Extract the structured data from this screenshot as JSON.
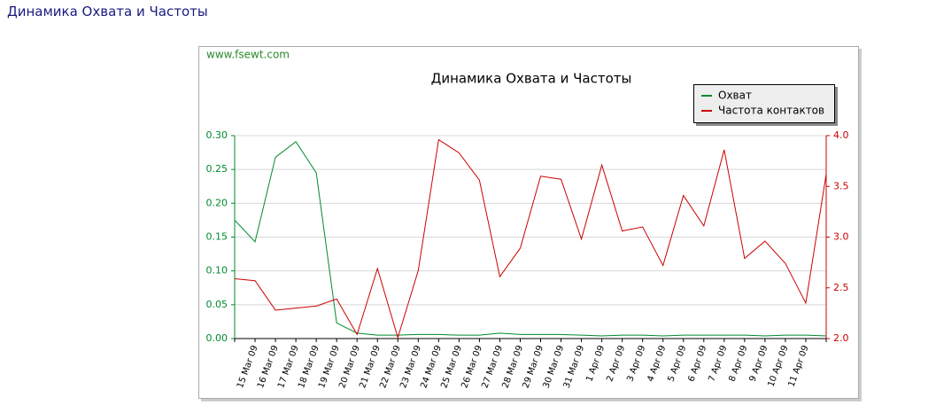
{
  "page_title": "Динамика Охвата и Частоты",
  "chart_data": {
    "type": "line",
    "title": "Динамика Охвата и Частоты",
    "source": "www.fsewt.com",
    "categories": [
      null,
      "15 Mar 09",
      "16 Mar 09",
      "17 Mar 09",
      "18 Mar 09",
      "19 Mar 09",
      "20 Mar 09",
      "21 Mar 09",
      "22 Mar 09",
      "23 Mar 09",
      "24 Mar 09",
      "25 Mar 09",
      "26 Mar 09",
      "27 Mar 09",
      "28 Mar 09",
      "29 Mar 09",
      "30 Mar 09",
      "31 Mar 09",
      "1 Apr 09",
      "2 Apr 09",
      "3 Apr 09",
      "4 Apr 09",
      "5 Apr 09",
      "6 Apr 09",
      "7 Apr 09",
      "8 Apr 09",
      "9 Apr 09",
      "10 Apr 09",
      "11 Apr 09",
      null
    ],
    "series": [
      {
        "name": "Охват",
        "color": "#008a2e",
        "values": [
          0.175,
          0.143,
          0.268,
          0.291,
          0.245,
          0.023,
          0.008,
          0.005,
          0.005,
          0.006,
          0.006,
          0.005,
          0.005,
          0.008,
          0.006,
          0.006,
          0.006,
          0.005,
          0.004,
          0.005,
          0.005,
          0.004,
          0.005,
          0.005,
          0.005,
          0.005,
          0.004,
          0.005,
          0.005,
          0.004
        ]
      },
      {
        "name": "Частота контактов",
        "color": "#cc0000",
        "axis": "y2",
        "values": [
          2.59,
          2.57,
          2.28,
          2.3,
          2.32,
          2.39,
          2.04,
          2.69,
          2.01,
          2.67,
          3.96,
          3.83,
          3.56,
          2.61,
          2.89,
          3.6,
          3.57,
          2.98,
          3.71,
          3.06,
          3.1,
          2.72,
          3.41,
          3.11,
          3.86,
          2.79,
          2.96,
          2.74,
          2.35,
          3.62
        ]
      }
    ],
    "ylim": [
      0,
      0.3
    ],
    "yticks": [
      {
        "value": 0,
        "label": "0.00"
      },
      0.05,
      {
        "value": 0.1,
        "label": "0.10"
      },
      0.15,
      {
        "value": 0.2,
        "label": "0.20"
      },
      0.25,
      {
        "value": 0.3,
        "label": "0.30"
      }
    ],
    "y2lim": [
      2,
      4
    ],
    "y2ticks": [
      {
        "value": 2,
        "label": "2.0"
      },
      2.5,
      {
        "value": 3,
        "label": "3.0"
      },
      3.5,
      {
        "value": 4,
        "label": "4.0"
      }
    ],
    "grid": true,
    "legend": "upper right"
  }
}
